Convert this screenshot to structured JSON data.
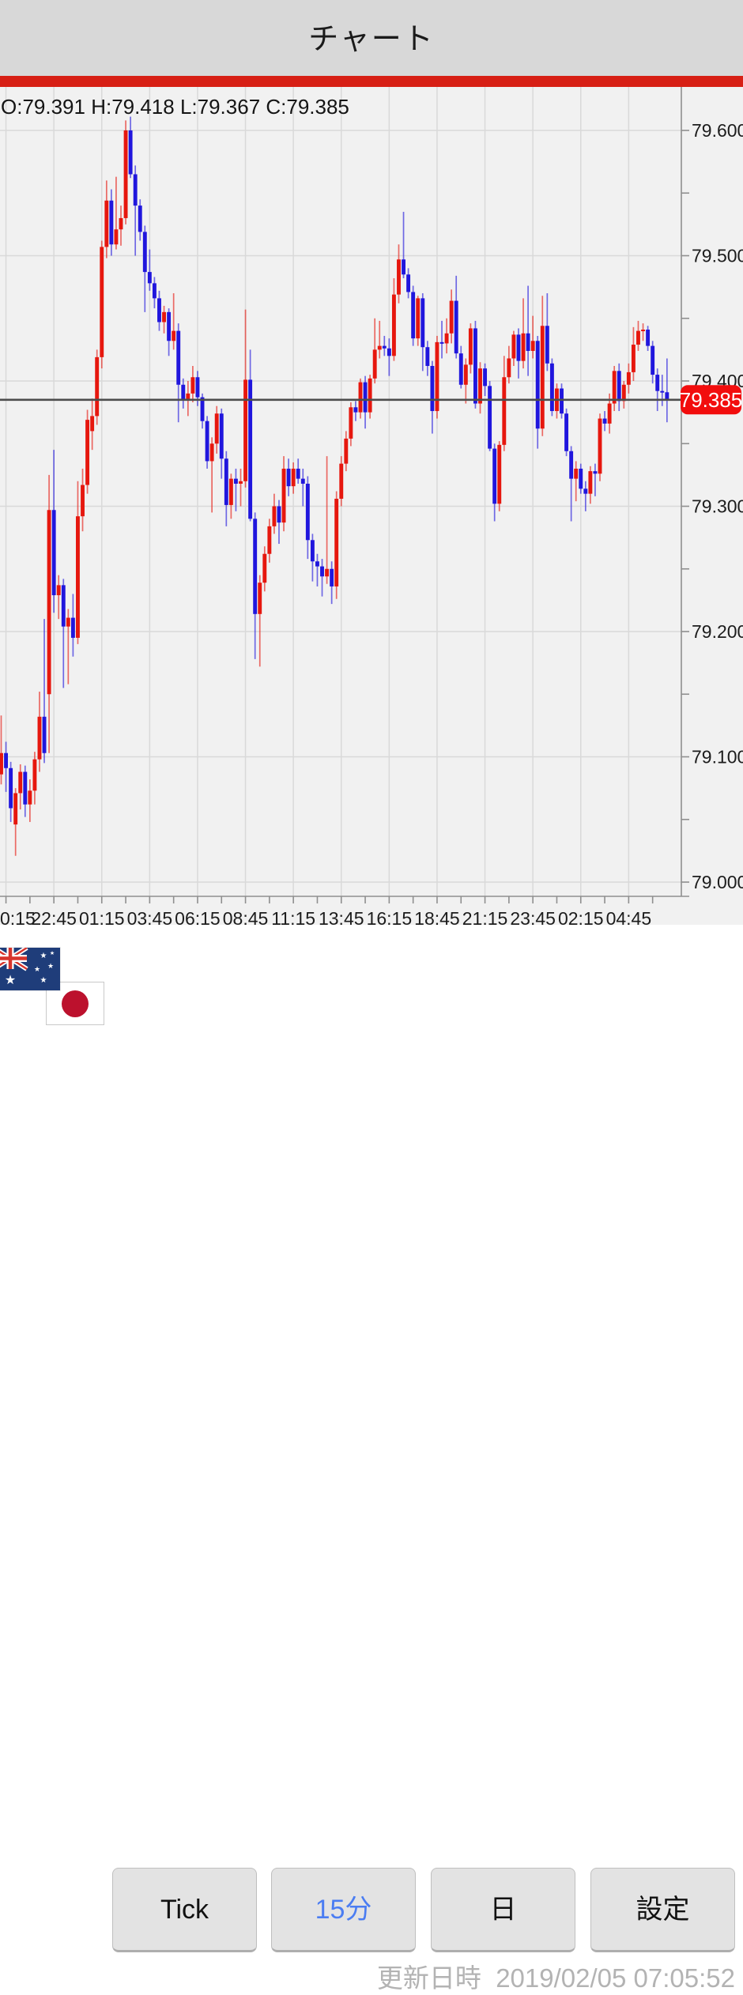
{
  "header": {
    "title": "チャート"
  },
  "ohlc": {
    "display": "O:79.391 H:79.418 L:79.367 C:79.385"
  },
  "chart_data": {
    "type": "candlestick",
    "instrument_icons": [
      "australia-flag-icon",
      "japan-flag-icon"
    ],
    "timeframe": "15分",
    "y_axis": {
      "tick_labels": [
        "79.600",
        "79.500",
        "79.400",
        "79.300",
        "79.200",
        "79.100",
        "79.000"
      ],
      "tick_values": [
        79.6,
        79.5,
        79.4,
        79.3,
        79.2,
        79.1,
        79.0
      ],
      "minor_step": 0.05,
      "price_range": [
        78.989,
        79.635
      ]
    },
    "x_axis": {
      "labels": [
        "0:15",
        "22:45",
        "01:15",
        "03:45",
        "06:15",
        "08:45",
        "11:15",
        "13:45",
        "16:15",
        "18:45",
        "21:15",
        "23:45",
        "02:15",
        "04:45"
      ],
      "first_label_index": 1,
      "label_every": 10,
      "minor_tick_every": 5
    },
    "price_line": 79.385,
    "current_price_label": "79.385",
    "colors": {
      "up": "#e6170e",
      "down": "#2016dd",
      "grid": "#d9d9d9",
      "axis": "#8f8f8f",
      "price_line": "#4d4d4d",
      "badge": "#f20d0d",
      "label": "#1c1c1c"
    },
    "candles": [
      [
        79.086,
        79.133,
        79.078,
        79.103
      ],
      [
        79.103,
        79.112,
        79.072,
        79.091
      ],
      [
        79.091,
        79.096,
        79.048,
        79.059
      ],
      [
        79.046,
        79.075,
        79.021,
        79.071
      ],
      [
        79.071,
        79.094,
        79.058,
        79.088
      ],
      [
        79.088,
        79.093,
        79.052,
        79.062
      ],
      [
        79.062,
        79.082,
        79.048,
        79.073
      ],
      [
        79.073,
        79.104,
        79.062,
        79.098
      ],
      [
        79.098,
        79.152,
        79.088,
        79.132
      ],
      [
        79.132,
        79.21,
        79.095,
        79.103
      ],
      [
        79.15,
        79.325,
        79.103,
        79.297
      ],
      [
        79.297,
        79.345,
        79.215,
        79.229
      ],
      [
        79.229,
        79.245,
        79.21,
        79.237
      ],
      [
        79.237,
        79.242,
        79.155,
        79.204
      ],
      [
        79.204,
        79.218,
        79.158,
        79.211
      ],
      [
        79.211,
        79.23,
        79.18,
        79.195
      ],
      [
        79.195,
        79.32,
        79.19,
        79.292
      ],
      [
        79.292,
        79.33,
        79.28,
        79.317
      ],
      [
        79.317,
        79.377,
        79.31,
        79.369
      ],
      [
        79.36,
        79.386,
        79.345,
        79.372
      ],
      [
        79.372,
        79.425,
        79.365,
        79.419
      ],
      [
        79.419,
        79.512,
        79.41,
        79.507
      ],
      [
        79.507,
        79.56,
        79.498,
        79.544
      ],
      [
        79.544,
        79.553,
        79.5,
        79.509
      ],
      [
        79.509,
        79.563,
        79.505,
        79.521
      ],
      [
        79.521,
        79.54,
        79.508,
        79.53
      ],
      [
        79.53,
        79.608,
        79.525,
        79.6
      ],
      [
        79.6,
        79.611,
        79.562,
        79.565
      ],
      [
        79.565,
        79.572,
        79.5,
        79.54
      ],
      [
        79.54,
        79.545,
        79.512,
        79.519
      ],
      [
        79.519,
        79.524,
        79.455,
        79.487
      ],
      [
        79.487,
        79.505,
        79.472,
        79.478
      ],
      [
        79.478,
        79.483,
        79.458,
        79.466
      ],
      [
        79.466,
        79.472,
        79.44,
        79.447
      ],
      [
        79.447,
        79.46,
        79.438,
        79.455
      ],
      [
        79.455,
        79.458,
        79.42,
        79.432
      ],
      [
        79.432,
        79.47,
        79.425,
        79.44
      ],
      [
        79.44,
        79.446,
        79.367,
        79.397
      ],
      [
        79.397,
        79.402,
        79.378,
        79.385
      ],
      [
        79.385,
        79.4,
        79.372,
        79.39
      ],
      [
        79.39,
        79.412,
        79.383,
        79.403
      ],
      [
        79.403,
        79.408,
        79.38,
        79.387
      ],
      [
        79.387,
        79.39,
        79.362,
        79.368
      ],
      [
        79.368,
        79.372,
        79.33,
        79.336
      ],
      [
        79.336,
        79.355,
        79.295,
        79.35
      ],
      [
        79.35,
        79.38,
        79.342,
        79.374
      ],
      [
        79.374,
        79.378,
        79.322,
        79.338
      ],
      [
        79.338,
        79.344,
        79.284,
        79.301
      ],
      [
        79.301,
        79.326,
        79.29,
        79.322
      ],
      [
        79.322,
        79.33,
        79.296,
        79.318
      ],
      [
        79.318,
        79.33,
        79.3,
        79.32
      ],
      [
        79.32,
        79.457,
        79.315,
        79.401
      ],
      [
        79.401,
        79.425,
        79.288,
        79.29
      ],
      [
        79.29,
        79.295,
        79.178,
        79.214
      ],
      [
        79.214,
        79.245,
        79.172,
        79.239
      ],
      [
        79.239,
        79.268,
        79.232,
        79.262
      ],
      [
        79.262,
        79.29,
        79.255,
        79.284
      ],
      [
        79.284,
        79.31,
        79.278,
        79.3
      ],
      [
        79.3,
        79.305,
        79.27,
        79.287
      ],
      [
        79.287,
        79.34,
        79.28,
        79.33
      ],
      [
        79.33,
        79.338,
        79.308,
        79.316
      ],
      [
        79.316,
        79.335,
        79.31,
        79.33
      ],
      [
        79.33,
        79.338,
        79.318,
        79.322
      ],
      [
        79.322,
        79.33,
        79.3,
        79.318
      ],
      [
        79.318,
        79.324,
        79.258,
        79.273
      ],
      [
        79.273,
        79.278,
        79.24,
        79.256
      ],
      [
        79.256,
        79.262,
        79.236,
        79.252
      ],
      [
        79.252,
        79.258,
        79.228,
        79.244
      ],
      [
        79.244,
        79.34,
        79.238,
        79.25
      ],
      [
        79.25,
        79.256,
        79.222,
        79.236
      ],
      [
        79.236,
        79.312,
        79.226,
        79.306
      ],
      [
        79.306,
        79.34,
        79.3,
        79.334
      ],
      [
        79.334,
        79.36,
        79.328,
        79.354
      ],
      [
        79.354,
        79.383,
        79.348,
        79.379
      ],
      [
        79.379,
        79.384,
        79.368,
        79.375
      ],
      [
        79.375,
        79.402,
        79.37,
        79.399
      ],
      [
        79.399,
        79.404,
        79.362,
        79.375
      ],
      [
        79.375,
        79.405,
        79.37,
        79.402
      ],
      [
        79.402,
        79.45,
        79.398,
        79.425
      ],
      [
        79.425,
        79.448,
        79.418,
        79.428
      ],
      [
        79.428,
        79.436,
        79.42,
        79.426
      ],
      [
        79.426,
        79.434,
        79.404,
        79.42
      ],
      [
        79.42,
        79.482,
        79.416,
        79.469
      ],
      [
        79.469,
        79.509,
        79.462,
        79.497
      ],
      [
        79.497,
        79.535,
        79.482,
        79.485
      ],
      [
        79.485,
        79.49,
        79.466,
        79.471
      ],
      [
        79.471,
        79.476,
        79.428,
        79.434
      ],
      [
        79.434,
        79.468,
        79.428,
        79.466
      ],
      [
        79.466,
        79.47,
        79.408,
        79.427
      ],
      [
        79.427,
        79.432,
        79.404,
        79.412
      ],
      [
        79.412,
        79.416,
        79.358,
        79.376
      ],
      [
        79.376,
        79.436,
        79.37,
        79.431
      ],
      [
        79.431,
        79.448,
        79.418,
        79.43
      ],
      [
        79.43,
        79.45,
        79.422,
        79.438
      ],
      [
        79.438,
        79.473,
        79.43,
        79.464
      ],
      [
        79.464,
        79.484,
        79.418,
        79.422
      ],
      [
        79.422,
        79.428,
        79.394,
        79.397
      ],
      [
        79.397,
        79.418,
        79.382,
        79.413
      ],
      [
        79.413,
        79.446,
        79.406,
        79.442
      ],
      [
        79.442,
        79.448,
        79.378,
        79.382
      ],
      [
        79.382,
        79.415,
        79.374,
        79.41
      ],
      [
        79.41,
        79.414,
        79.388,
        79.396
      ],
      [
        79.396,
        79.4,
        79.344,
        79.346
      ],
      [
        79.346,
        79.35,
        79.288,
        79.302
      ],
      [
        79.302,
        79.352,
        79.296,
        79.349
      ],
      [
        79.349,
        79.42,
        79.344,
        79.403
      ],
      [
        79.403,
        79.428,
        79.398,
        79.418
      ],
      [
        79.418,
        79.44,
        79.412,
        79.437
      ],
      [
        79.437,
        79.442,
        79.402,
        79.416
      ],
      [
        79.416,
        79.466,
        79.41,
        79.438
      ],
      [
        79.438,
        79.476,
        79.404,
        79.424
      ],
      [
        79.424,
        79.452,
        79.418,
        79.432
      ],
      [
        79.432,
        79.436,
        79.346,
        79.362
      ],
      [
        79.362,
        79.468,
        79.356,
        79.444
      ],
      [
        79.444,
        79.47,
        79.408,
        79.414
      ],
      [
        79.414,
        79.418,
        79.372,
        79.376
      ],
      [
        79.376,
        79.398,
        79.37,
        79.394
      ],
      [
        79.394,
        79.398,
        79.37,
        79.374
      ],
      [
        79.374,
        79.378,
        79.34,
        79.344
      ],
      [
        79.344,
        79.348,
        79.288,
        79.322
      ],
      [
        79.322,
        79.336,
        79.304,
        79.33
      ],
      [
        79.33,
        79.334,
        79.31,
        79.314
      ],
      [
        79.314,
        79.32,
        79.296,
        79.31
      ],
      [
        79.31,
        79.332,
        79.302,
        79.328
      ],
      [
        79.328,
        79.334,
        79.308,
        79.326
      ],
      [
        79.326,
        79.374,
        79.32,
        79.37
      ],
      [
        79.37,
        79.376,
        79.36,
        79.366
      ],
      [
        79.366,
        79.39,
        79.358,
        79.382
      ],
      [
        79.382,
        79.412,
        79.376,
        79.408
      ],
      [
        79.408,
        79.414,
        79.376,
        79.384
      ],
      [
        79.384,
        79.4,
        79.378,
        79.397
      ],
      [
        79.397,
        79.414,
        79.39,
        79.407
      ],
      [
        79.407,
        79.443,
        79.4,
        79.429
      ],
      [
        79.429,
        79.448,
        79.424,
        79.44
      ],
      [
        79.44,
        79.446,
        79.432,
        79.441
      ],
      [
        79.441,
        79.444,
        79.424,
        79.428
      ],
      [
        79.428,
        79.432,
        79.398,
        79.405
      ],
      [
        79.405,
        79.41,
        79.376,
        79.392
      ],
      [
        79.392,
        79.405,
        79.38,
        79.391
      ],
      [
        79.391,
        79.418,
        79.367,
        79.385
      ]
    ]
  },
  "toolbar": {
    "buttons": [
      {
        "label": "Tick",
        "active": false
      },
      {
        "label": "15分",
        "active": true
      },
      {
        "label": "日",
        "active": false
      },
      {
        "label": "設定",
        "active": false
      }
    ]
  },
  "footer": {
    "update_label": "更新日時",
    "updated_at": "2019/02/05 07:05:52"
  }
}
